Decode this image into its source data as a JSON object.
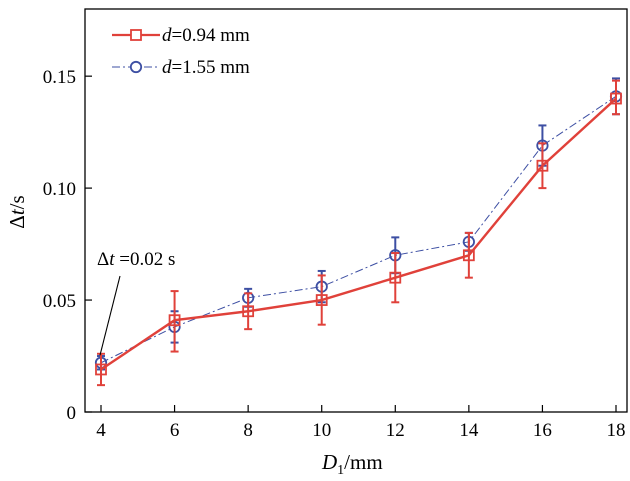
{
  "chart_data": {
    "type": "line",
    "xlabel_main": "D",
    "xlabel_sub": "1",
    "xlabel_unit": "/mm",
    "ylabel_delta": "Δ",
    "ylabel_var": "t",
    "ylabel_unit": "/s",
    "xlim": [
      4,
      18
    ],
    "ylim": [
      0,
      0.18
    ],
    "xticks": [
      4,
      6,
      8,
      10,
      12,
      14,
      16,
      18
    ],
    "xtick_labels": [
      "4",
      "6",
      "8",
      "10",
      "12",
      "14",
      "16",
      "18"
    ],
    "yticks": [
      0,
      0.05,
      0.1,
      0.15
    ],
    "ytick_labels": [
      "0",
      "0.05",
      "0.10",
      "0.15"
    ],
    "x": [
      4,
      6,
      8,
      10,
      12,
      14,
      16,
      18
    ],
    "series": [
      {
        "name": "d=0.94 mm",
        "legend_var": "d",
        "legend_rest": "=0.94 mm",
        "color": "#e0413a",
        "marker": "square",
        "line_style": "solid",
        "values": [
          0.019,
          0.041,
          0.045,
          0.05,
          0.06,
          0.07,
          0.11,
          0.14
        ],
        "err_low": [
          0.007,
          0.014,
          0.008,
          0.011,
          0.011,
          0.01,
          0.01,
          0.007
        ],
        "err_high": [
          0.007,
          0.013,
          0.008,
          0.011,
          0.011,
          0.01,
          0.01,
          0.008
        ]
      },
      {
        "name": "d=1.55 mm",
        "legend_var": "d",
        "legend_rest": "=1.55 mm",
        "color": "#3d4fa3",
        "marker": "circle",
        "line_style": "dashdot",
        "values": [
          0.022,
          0.038,
          0.051,
          0.056,
          0.07,
          0.076,
          0.119,
          0.141
        ],
        "err_low": [
          0.003,
          0.007,
          0.004,
          0.007,
          0.008,
          0.004,
          0.009,
          0.008
        ],
        "err_high": [
          0.003,
          0.007,
          0.004,
          0.007,
          0.008,
          0.004,
          0.009,
          0.008
        ]
      }
    ],
    "annotation": {
      "delta": "Δ",
      "var": "t",
      "rest": " =0.02 s",
      "x": 4,
      "y": 0.02
    }
  }
}
